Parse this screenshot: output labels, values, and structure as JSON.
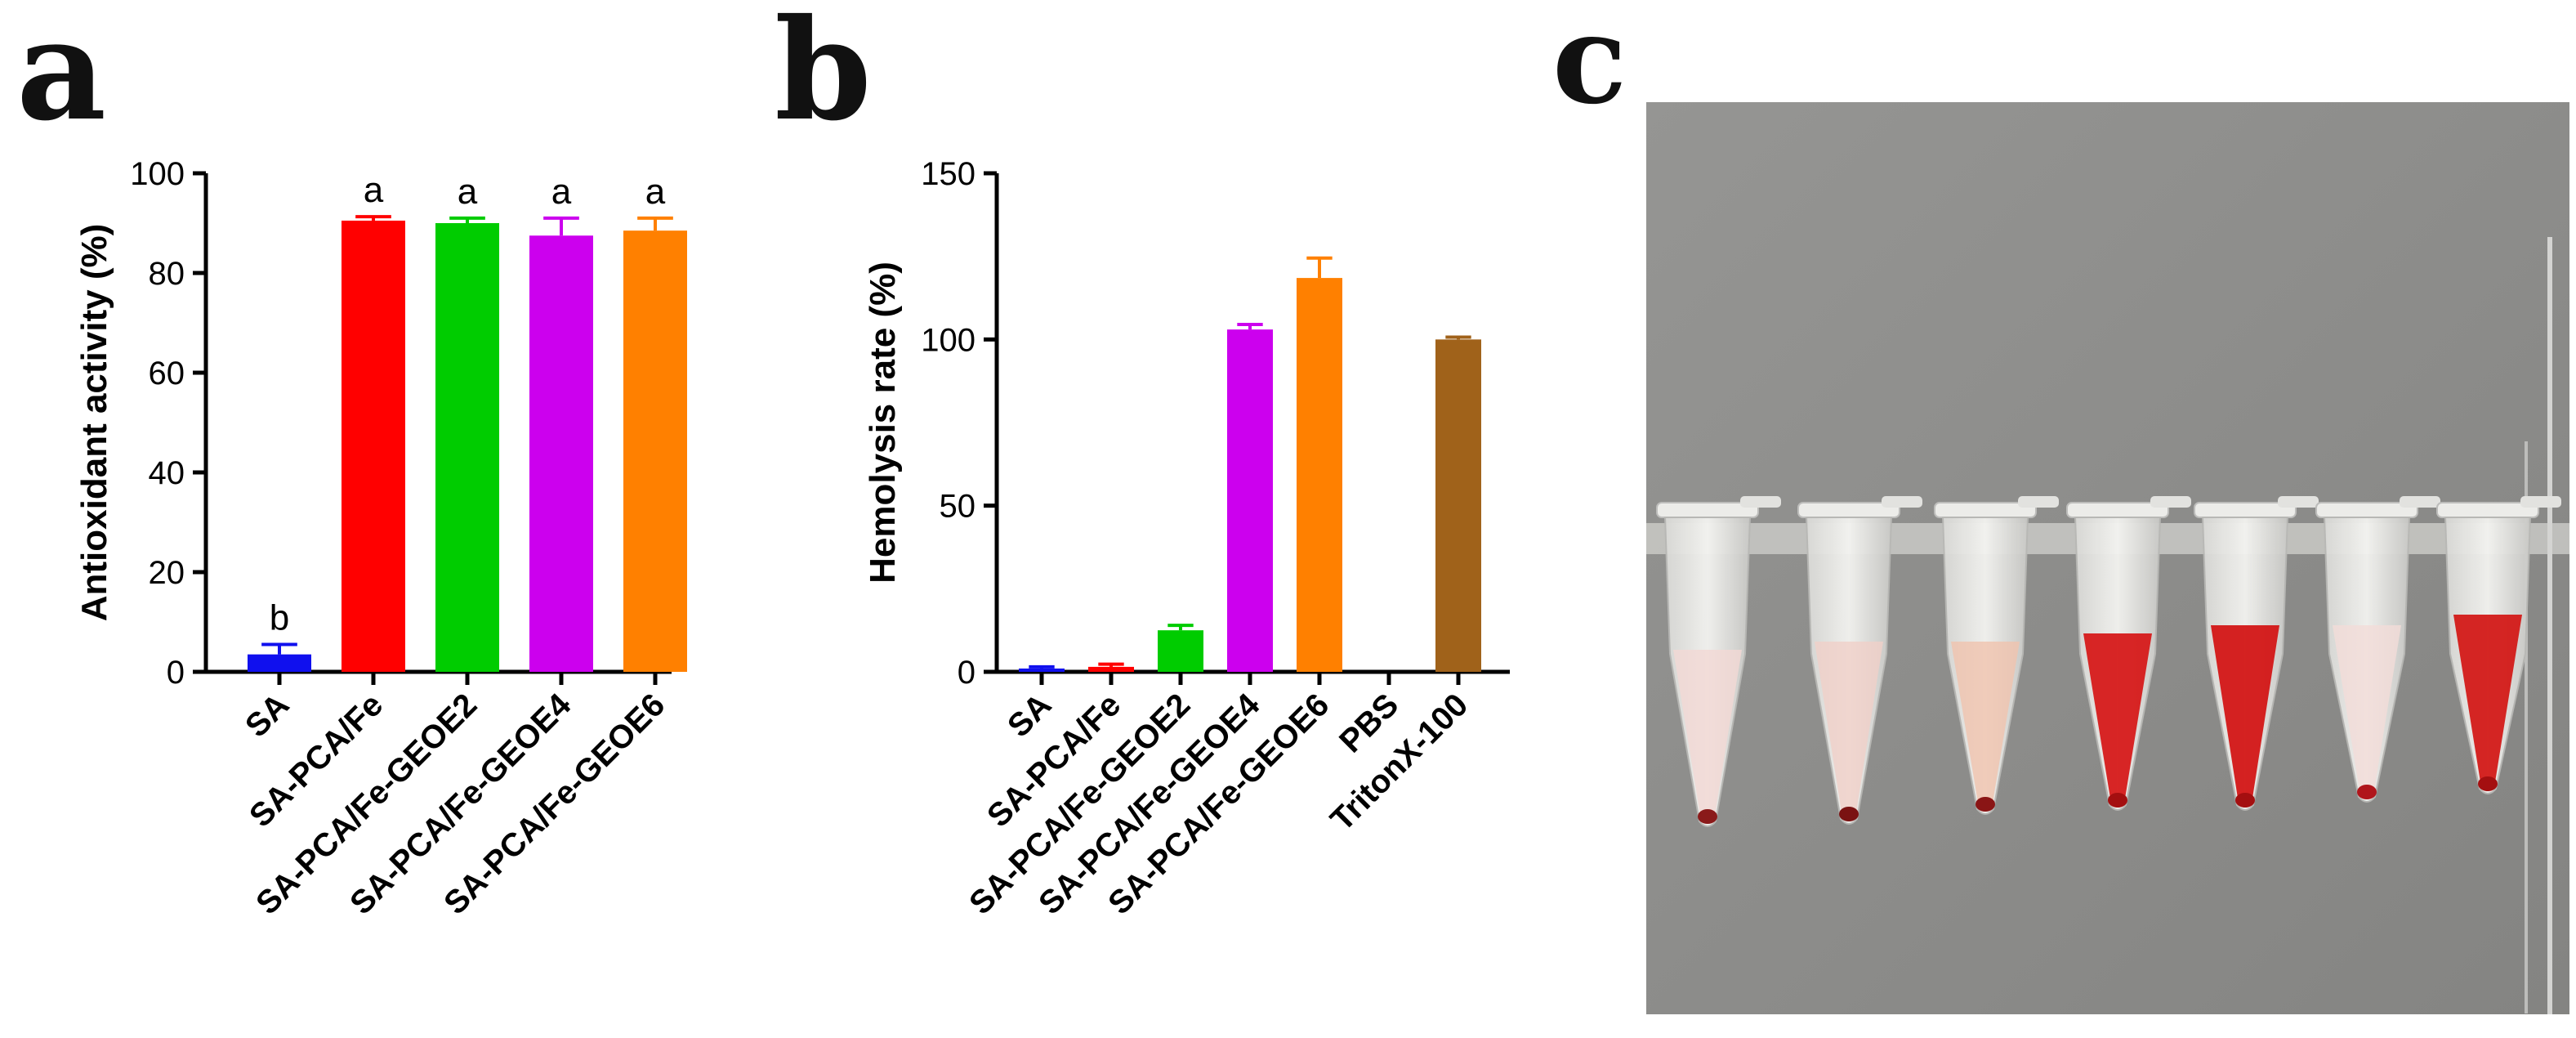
{
  "panels": {
    "a": {
      "letter": "a"
    },
    "b": {
      "letter": "b"
    },
    "c": {
      "letter": "c",
      "photo_description": "Photograph of seven microcentrifuge tubes in a rack showing hemolysis results"
    }
  },
  "colors": {
    "blue": "#1010ee",
    "red": "#ff0000",
    "green": "#00cc00",
    "magenta": "#cc00ee",
    "orange": "#ff8000",
    "brown": "#a0621a",
    "photo_background": "#8e8e8c"
  },
  "chart_data": [
    {
      "id": "a",
      "type": "bar",
      "title": "",
      "xlabel": "",
      "ylabel": "Antioxidant activity (%)",
      "ylim": [
        0,
        100
      ],
      "yticks": [
        0,
        20,
        40,
        60,
        80,
        100
      ],
      "categories": [
        "SA",
        "SA-PCA/Fe",
        "SA-PCA/Fe-GEOE2",
        "SA-PCA/Fe-GEOE4",
        "SA-PCA/Fe-GEOE6"
      ],
      "values": [
        3.5,
        90.5,
        90,
        87.5,
        88.5
      ],
      "errors": [
        2,
        0.8,
        1,
        3.5,
        2.5
      ],
      "significance": [
        "b",
        "a",
        "a",
        "a",
        "a"
      ],
      "colors": [
        "#1010ee",
        "#ff0000",
        "#00cc00",
        "#cc00ee",
        "#ff8000"
      ]
    },
    {
      "id": "b",
      "type": "bar",
      "title": "",
      "xlabel": "",
      "ylabel": "Hemolysis rate (%)",
      "ylim": [
        0,
        150
      ],
      "yticks": [
        0,
        50,
        100,
        150
      ],
      "categories": [
        "SA",
        "SA-PCA/Fe",
        "SA-PCA/Fe-GEOE2",
        "SA-PCA/Fe-GEOE4",
        "SA-PCA/Fe-GEOE6",
        "PBS",
        "TritonX-100"
      ],
      "values": [
        1,
        1.5,
        12.5,
        103,
        118.5,
        0,
        100
      ],
      "errors": [
        0.5,
        0.8,
        1.5,
        1.5,
        6,
        0,
        0.7
      ],
      "colors": [
        "#1010ee",
        "#ff0000",
        "#00cc00",
        "#cc00ee",
        "#ff8000",
        "#808080",
        "#a0621a"
      ]
    }
  ]
}
